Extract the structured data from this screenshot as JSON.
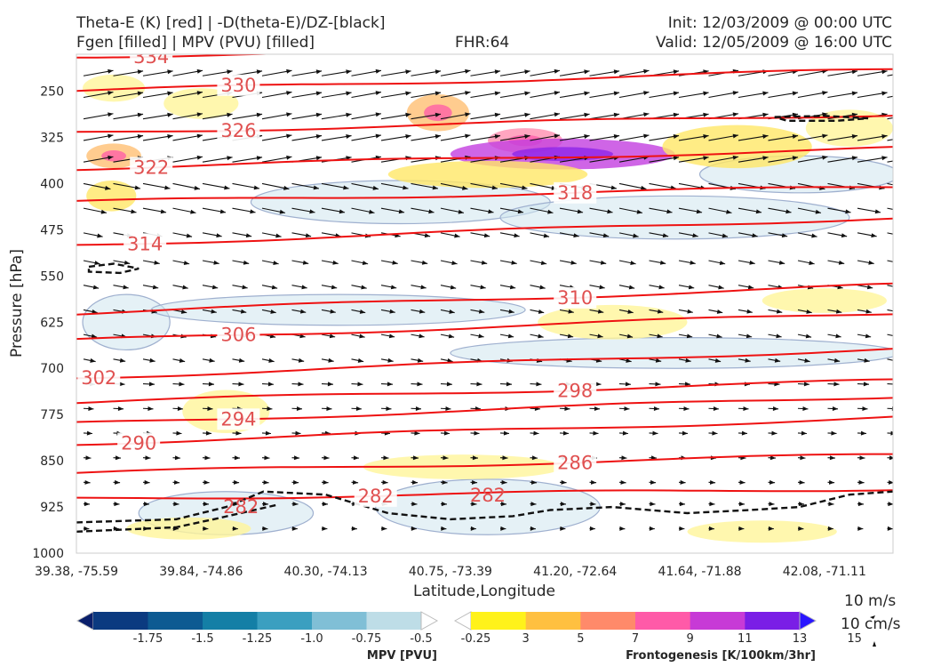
{
  "header": {
    "title_left_1": "Theta-E (K) [red] | -D(theta-E)/DZ-[black]",
    "title_left_2": "Fgen [filled] | MPV (PVU) [filled]",
    "fhr": "FHR:64",
    "init": "Init: 12/03/2009 @ 00:00 UTC",
    "valid": "Valid: 12/05/2009 @ 16:00 UTC"
  },
  "colors": {
    "theta_e": "#ee1111",
    "label": "#e05050",
    "stability": "#111111",
    "mpv_line": "#9fb0cf",
    "frame": "#555555"
  },
  "chart_data": {
    "type": "cross-section",
    "xlabel": "Latitude,Longitude",
    "ylabel": "Pressure [hPa]",
    "x_ticks": [
      "39.38, -75.59",
      "39.84, -74.86",
      "40.30, -74.13",
      "40.75, -73.39",
      "41.20, -72.64",
      "41.64, -71.88",
      "42.08, -71.11"
    ],
    "x_tick_index": [
      0,
      1,
      2,
      3,
      4,
      5,
      6
    ],
    "x_range": [
      0,
      6.55
    ],
    "y_ticks": [
      250,
      325,
      400,
      475,
      550,
      625,
      700,
      775,
      850,
      925,
      1000
    ],
    "y_range": [
      1000,
      190
    ],
    "theta_e_contours": [
      {
        "value": 334,
        "p_left": 193,
        "p_right": 176,
        "label": "334",
        "label_x": 0.6
      },
      {
        "value": 330,
        "p_left": 250,
        "p_right": 215,
        "label": "330",
        "label_x": 1.3
      },
      {
        "value": 326,
        "p_left": 318,
        "p_right": 287,
        "label": "326",
        "label_x": 1.3
      },
      {
        "value": 322,
        "p_left": 375,
        "p_right": 343,
        "label": "322",
        "label_x": 0.6
      },
      {
        "value": 318,
        "p_left": 430,
        "p_right": 405,
        "label": "318",
        "label_x": 4.0
      },
      {
        "value": 314,
        "p_left": 500,
        "p_right": 455,
        "label": "314",
        "label_x": 0.55
      },
      {
        "value": 310,
        "p_left": 610,
        "p_right": 565,
        "label": "310",
        "label_x": 4.0
      },
      {
        "value": 306,
        "p_left": 655,
        "p_right": 610,
        "label": "306",
        "label_x": 1.3
      },
      {
        "value": 302,
        "p_left": 715,
        "p_right": 668,
        "label": "302",
        "label_x": 0.18
      },
      {
        "value": 298,
        "p_left": 755,
        "p_right": 720,
        "label": "298",
        "label_x": 4.0
      },
      {
        "value": 294,
        "p_left": 790,
        "p_right": 745,
        "label": "294",
        "label_x": 1.3
      },
      {
        "value": 290,
        "p_left": 822,
        "p_right": 780,
        "label": "290",
        "label_x": 0.5
      },
      {
        "value": 286,
        "p_left": 870,
        "p_right": 840,
        "label": "286",
        "label_x": 4.0
      },
      {
        "value": 282,
        "p_left": 912,
        "p_right": 895,
        "label": "282",
        "label_x": 2.4
      }
    ],
    "extra_contour_labels": [
      {
        "text": "282",
        "x": 3.3,
        "p": 906
      },
      {
        "text": "282",
        "x": 1.32,
        "p": 925
      }
    ],
    "stability_contours": [
      {
        "name": "upper-right-loop",
        "points": [
          [
            5.6,
            292
          ],
          [
            6.0,
            290
          ],
          [
            6.35,
            294
          ],
          [
            6.1,
            298
          ],
          [
            5.7,
            298
          ],
          [
            5.6,
            292
          ]
        ]
      },
      {
        "name": "left-loop",
        "points": [
          [
            0.1,
            535
          ],
          [
            0.3,
            530
          ],
          [
            0.5,
            538
          ],
          [
            0.35,
            545
          ],
          [
            0.1,
            543
          ],
          [
            0.1,
            535
          ]
        ]
      },
      {
        "name": "boundary-layer",
        "points": [
          [
            0,
            950
          ],
          [
            0.8,
            945
          ],
          [
            1.2,
            925
          ],
          [
            1.5,
            900
          ],
          [
            2.0,
            905
          ],
          [
            2.5,
            935
          ],
          [
            3.0,
            945
          ],
          [
            3.5,
            940
          ],
          [
            3.8,
            930
          ],
          [
            4.3,
            925
          ],
          [
            4.9,
            935
          ],
          [
            5.4,
            930
          ],
          [
            5.8,
            925
          ],
          [
            6.2,
            905
          ],
          [
            6.55,
            900
          ]
        ]
      },
      {
        "name": "boundary-layer-low",
        "points": [
          [
            0,
            965
          ],
          [
            0.8,
            958
          ],
          [
            1.1,
            945
          ],
          [
            1.6,
            922
          ]
        ]
      }
    ],
    "mpv_fill_regions": [
      {
        "x": 0.4,
        "p": 625,
        "rx": 0.35,
        "rp": 45
      },
      {
        "x": 1.2,
        "p": 935,
        "rx": 0.7,
        "rp": 35
      },
      {
        "x": 3.3,
        "p": 925,
        "rx": 0.9,
        "rp": 45
      },
      {
        "x": 2.6,
        "p": 430,
        "rx": 1.2,
        "rp": 35
      },
      {
        "x": 4.8,
        "p": 455,
        "rx": 1.4,
        "rp": 35
      },
      {
        "x": 5.8,
        "p": 385,
        "rx": 0.8,
        "rp": 30
      },
      {
        "x": 2.1,
        "p": 605,
        "rx": 1.5,
        "rp": 25
      },
      {
        "x": 4.8,
        "p": 675,
        "rx": 1.8,
        "rp": 25
      }
    ],
    "frontogenesis_fill_regions": [
      {
        "x": 0.3,
        "p": 245,
        "rx": 0.25,
        "rp": 22,
        "level": 3
      },
      {
        "x": 1.0,
        "p": 270,
        "rx": 0.3,
        "rp": 25,
        "level": 3
      },
      {
        "x": 2.9,
        "p": 285,
        "rx": 0.25,
        "rp": 30,
        "level": 7
      },
      {
        "x": 3.6,
        "p": 330,
        "rx": 0.3,
        "rp": 20,
        "level": 9
      },
      {
        "x": 3.9,
        "p": 352,
        "rx": 0.9,
        "rp": 25,
        "level": 13
      },
      {
        "x": 3.3,
        "p": 385,
        "rx": 0.8,
        "rp": 22,
        "level": 5
      },
      {
        "x": 0.3,
        "p": 355,
        "rx": 0.22,
        "rp": 20,
        "level": 7
      },
      {
        "x": 0.28,
        "p": 420,
        "rx": 0.2,
        "rp": 25,
        "level": 5
      },
      {
        "x": 5.3,
        "p": 340,
        "rx": 0.6,
        "rp": 35,
        "level": 5
      },
      {
        "x": 6.2,
        "p": 310,
        "rx": 0.35,
        "rp": 30,
        "level": 3
      },
      {
        "x": 6.0,
        "p": 590,
        "rx": 0.5,
        "rp": 20,
        "level": 3
      },
      {
        "x": 4.3,
        "p": 625,
        "rx": 0.6,
        "rp": 28,
        "level": 3
      },
      {
        "x": 1.2,
        "p": 770,
        "rx": 0.35,
        "rp": 35,
        "level": 3
      },
      {
        "x": 3.1,
        "p": 860,
        "rx": 0.8,
        "rp": 20,
        "level": 3
      },
      {
        "x": 0.9,
        "p": 960,
        "rx": 0.5,
        "rp": 18,
        "level": 3
      },
      {
        "x": 5.5,
        "p": 965,
        "rx": 0.6,
        "rp": 18,
        "level": 3
      }
    ],
    "wind_vector_levels": [
      {
        "p": 225,
        "scale": 1.0
      },
      {
        "p": 260,
        "scale": 1.0
      },
      {
        "p": 295,
        "scale": 1.0
      },
      {
        "p": 330,
        "scale": 1.0
      },
      {
        "p": 365,
        "scale": 1.0
      },
      {
        "p": 400,
        "scale": 0.9
      },
      {
        "p": 440,
        "scale": 0.75
      },
      {
        "p": 480,
        "scale": 0.6
      },
      {
        "p": 525,
        "scale": 0.5
      },
      {
        "p": 565,
        "scale": 0.45
      },
      {
        "p": 605,
        "scale": 0.4
      },
      {
        "p": 645,
        "scale": 0.38
      },
      {
        "p": 685,
        "scale": 0.33
      },
      {
        "p": 725,
        "scale": 0.3
      },
      {
        "p": 765,
        "scale": 0.25
      },
      {
        "p": 805,
        "scale": 0.2
      },
      {
        "p": 845,
        "scale": 0.15
      },
      {
        "p": 885,
        "scale": 0.12
      },
      {
        "p": 920,
        "scale": 0.1
      },
      {
        "p": 960,
        "scale": 0.08
      }
    ]
  },
  "colorbars": {
    "mpv": {
      "title": "MPV [PVU]",
      "tick_labels": [
        "-1.75",
        "-1.5",
        "-1.25",
        "-1.0",
        "-0.75",
        "-0.5",
        "-0.25"
      ],
      "colors": [
        "#0a1f6b",
        "#0b3a80",
        "#0d5a92",
        "#147fa6",
        "#3b9fc0",
        "#80bfd6",
        "#bedde7",
        "#ffffff"
      ]
    },
    "fgen": {
      "title": "Frontogenesis [K/100km/3hr]",
      "tick_labels": [
        "3",
        "5",
        "7",
        "9",
        "11",
        "13",
        "15"
      ],
      "colors": [
        "#ffffff",
        "#fff21a",
        "#ffc040",
        "#ff8a6a",
        "#ff5aa8",
        "#c73ad6",
        "#7a1ee6",
        "#2a16ff"
      ]
    }
  },
  "vector_key": {
    "wind_label": "10 m/s",
    "vertical_label": "10 cm/s"
  }
}
